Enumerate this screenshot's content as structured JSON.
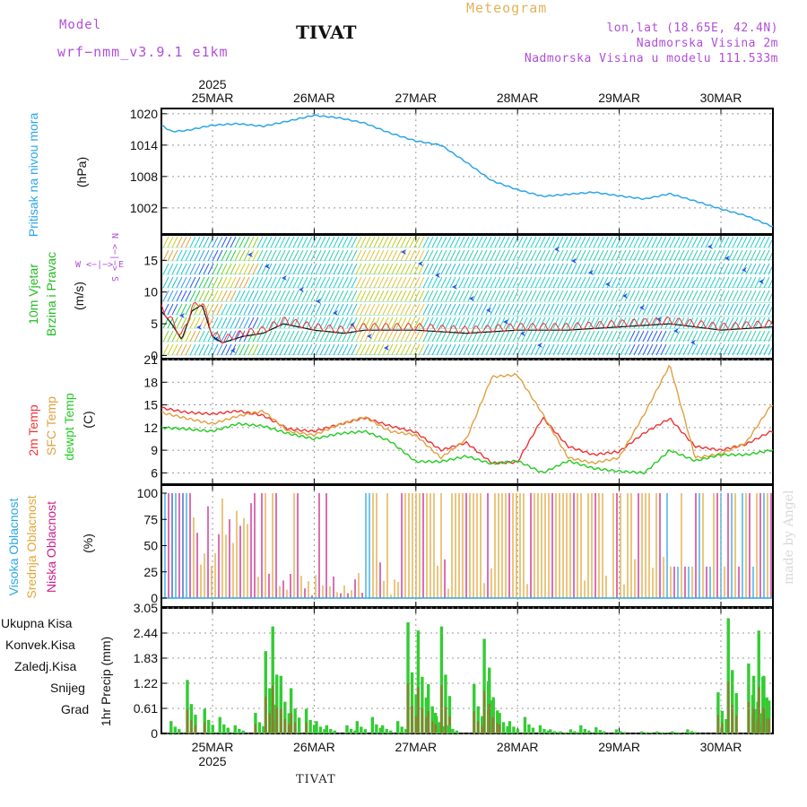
{
  "header": {
    "model_label": "Model",
    "model_name": "wrf−nmm_v3.9.1  e1km",
    "title": "TIVAT",
    "meteogram": "Meteogram",
    "lonlat": "lon,lat (18.65E, 42.4N)",
    "elevation": "Nadmorska Visina 2m",
    "model_elevation": "Nadmorska Visina u modelu 111.533m",
    "credit": "made by Angel",
    "footer_station": "TIVAT"
  },
  "dates": {
    "year": "2025",
    "labels": [
      "25MAR",
      "26MAR",
      "27MAR",
      "28MAR",
      "29MAR",
      "30MAR"
    ]
  },
  "colors": {
    "pressure": "#2ba6e6",
    "wind_label": "#22bb22",
    "temp2m": "#ee3333",
    "sfc": "#e0a040",
    "dew": "#22cc22",
    "high_cloud": "#2aa7e6",
    "mid_cloud": "#e0a83a",
    "low_cloud": "#cc1f8c",
    "precip_total": "#33cc33",
    "precip_conv": "#ee4444",
    "precip_frozen": "#ee8833",
    "snow": "#4444ee",
    "hail": "#33cccc",
    "grid": "#999999"
  },
  "panels": {
    "pressure": {
      "label": "Pritisak na nivou mora",
      "unit": "(hPa)",
      "ticks": [
        "1020",
        "1014",
        "1008",
        "1002"
      ]
    },
    "wind": {
      "label1": "10m Vjetar",
      "label2": "Brzina i Pravac",
      "unit": "(m/s)",
      "ticks": [
        "15",
        "10",
        "5",
        "0"
      ],
      "compass_ns": "N <−|−> S",
      "compass_we": "W <−|−> E"
    },
    "temp": {
      "label1": "2m Temp",
      "label2": "SFC Temp",
      "label3": "dewpt Temp",
      "unit": "(C)",
      "ticks": [
        "21",
        "18",
        "15",
        "12",
        "9",
        "6"
      ]
    },
    "cloud": {
      "label1": "Visoka Oblacnost",
      "label2": "Srednja Oblacnost",
      "label3": "Niska Oblacnost",
      "unit": "(%)",
      "ticks": [
        "100",
        "75",
        "50",
        "25",
        "0"
      ]
    },
    "precip": {
      "unit": "1hr Precip (mm)",
      "ticks": [
        "3.05",
        "2.44",
        "1.83",
        "1.22",
        "0.61",
        "0"
      ],
      "legend": [
        "Ukupna  Kisa",
        "Konvek.Kisa",
        "Zaledj.Kisa",
        "Snijeg",
        "Grad"
      ]
    }
  },
  "chart_data": [
    {
      "type": "line",
      "title": "Pritisak na nivou mora",
      "ylabel": "hPa",
      "ylim": [
        997,
        1021
      ],
      "x": [
        0,
        0.1,
        0.25,
        0.5,
        0.75,
        1.0,
        1.25,
        1.5,
        1.75,
        2.0,
        2.25,
        2.5,
        2.75,
        3.0,
        3.25,
        3.5,
        3.75,
        4.0,
        4.25,
        4.5,
        4.75,
        5.0,
        5.25,
        5.5,
        5.75,
        6.0
      ],
      "series": [
        {
          "values": [
            1017.8,
            1016.6,
            1016.8,
            1017.8,
            1018.1,
            1017.6,
            1018.6,
            1019.7,
            1019.2,
            1018.2,
            1016.3,
            1014.8,
            1014.0,
            1010.7,
            1007.2,
            1005.5,
            1004.2,
            1004.6,
            1005.0,
            1004.3,
            1003.7,
            1004.7,
            1003.3,
            1001.8,
            1000.5,
            998.5
          ]
        }
      ]
    },
    {
      "type": "line",
      "title": "10m Vjetar Brzina i Pravac",
      "ylabel": "m/s",
      "ylim": [
        -0.5,
        19
      ],
      "x": [
        0,
        0.1,
        0.2,
        0.3,
        0.4,
        0.5,
        0.6,
        0.8,
        1.0,
        1.2,
        1.5,
        1.8,
        2.0,
        2.5,
        3.0,
        3.5,
        4.0,
        4.5,
        5.0,
        5.5,
        6.0
      ],
      "series": [
        {
          "values": [
            7,
            5,
            2.5,
            7,
            8,
            3,
            2,
            3,
            3.5,
            5,
            4,
            3.5,
            4,
            4,
            3.5,
            4,
            4,
            4.5,
            5,
            4,
            4.5
          ]
        }
      ]
    },
    {
      "type": "line",
      "title": "2m Temp / SFC Temp / dewpt Temp",
      "ylabel": "C",
      "ylim": [
        4.5,
        21
      ],
      "x": [
        0,
        0.25,
        0.5,
        0.75,
        1.0,
        1.25,
        1.5,
        1.75,
        2.0,
        2.25,
        2.5,
        2.75,
        3.0,
        3.25,
        3.5,
        3.75,
        4.0,
        4.25,
        4.5,
        4.75,
        5.0,
        5.25,
        5.5,
        5.75,
        6.0
      ],
      "series": [
        {
          "name": "2m Temp",
          "values": [
            14.6,
            14.0,
            13.8,
            14.2,
            13.6,
            11.8,
            11.5,
            12.4,
            13.3,
            12.2,
            11.4,
            9.0,
            10.0,
            7.3,
            7.4,
            13.3,
            9.5,
            8.4,
            8.8,
            11.3,
            13.2,
            9.5,
            9.0,
            9.8,
            11.5
          ]
        },
        {
          "name": "SFC Temp",
          "values": [
            14.0,
            13.2,
            12.5,
            13.5,
            14.2,
            11.5,
            11.0,
            12.4,
            13.4,
            11.5,
            11.0,
            8.0,
            10.5,
            18.7,
            19.0,
            13.8,
            8.0,
            7.3,
            8.0,
            13.8,
            20.3,
            8.0,
            8.5,
            10.0,
            15.0
          ]
        },
        {
          "name": "dewpt Temp",
          "values": [
            12.0,
            11.8,
            11.5,
            12.5,
            12.2,
            11.2,
            10.5,
            11.2,
            11.5,
            10.2,
            7.5,
            7.5,
            8.2,
            7.2,
            7.6,
            6.0,
            7.6,
            6.6,
            6.2,
            6.0,
            9.0,
            7.6,
            8.4,
            8.4,
            9.0
          ]
        }
      ]
    },
    {
      "type": "bar",
      "title": "Visoka / Srednja / Niska Oblacnost",
      "ylabel": "%",
      "ylim": [
        0,
        100
      ]
    },
    {
      "type": "bar",
      "title": "1hr Precip",
      "ylabel": "mm",
      "ylim": [
        0,
        3.05
      ],
      "x": [
        0.12,
        0.28,
        0.45,
        0.6,
        0.75,
        0.95,
        1.05,
        1.12,
        1.2,
        1.3,
        1.45,
        1.55,
        1.65,
        1.85,
        1.95,
        2.1,
        2.2,
        2.35,
        2.45,
        2.55,
        2.65,
        2.72,
        2.78,
        2.85,
        3.1,
        3.2,
        3.25,
        3.35,
        3.45,
        3.6,
        3.75,
        3.85,
        3.95,
        4.05,
        4.15,
        4.3,
        4.5,
        4.75,
        4.9,
        5.05,
        5.2,
        5.5,
        5.6,
        5.8,
        5.85,
        5.9,
        5.95,
        6.0
      ],
      "values": [
        0.3,
        1.3,
        0.6,
        0.4,
        0.2,
        0.5,
        2.0,
        2.6,
        1.4,
        1.1,
        0.6,
        0.3,
        0.2,
        0.2,
        0.3,
        0.4,
        0.2,
        0.3,
        2.7,
        2.5,
        1.2,
        0.5,
        2.6,
        0.2,
        1.2,
        2.3,
        1.6,
        0.5,
        0.3,
        0.4,
        0.2,
        0.1,
        0.05,
        0.1,
        0.2,
        0.15,
        0.1,
        0.05,
        0.05,
        0.05,
        0.1,
        1.0,
        2.8,
        1.7,
        1.4,
        2.5,
        1.4,
        0.8
      ]
    }
  ]
}
